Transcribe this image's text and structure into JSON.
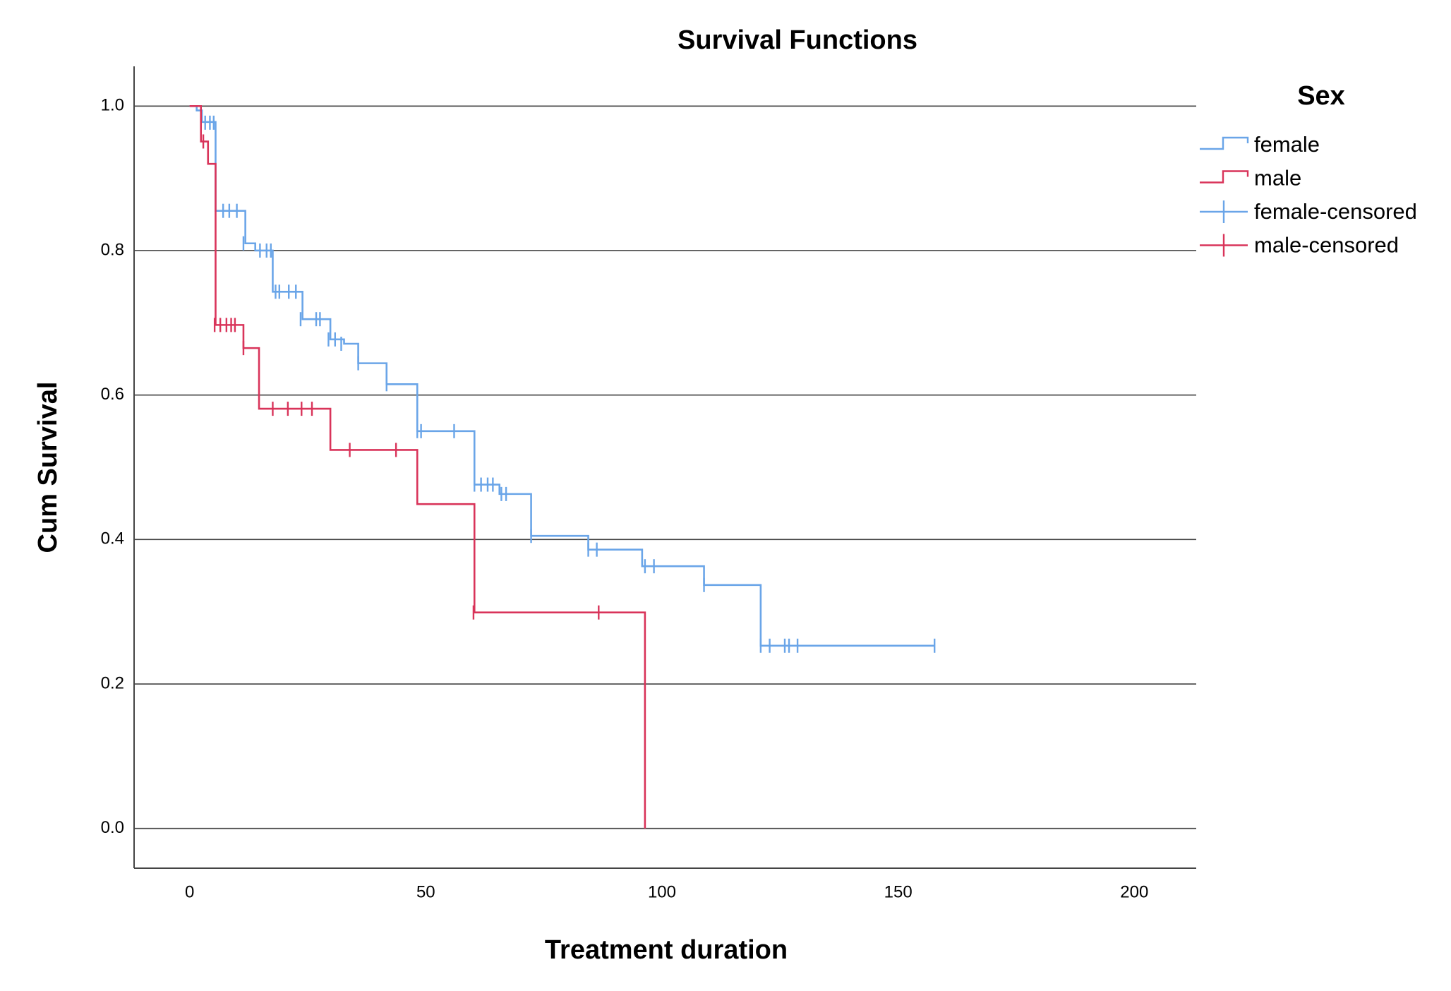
{
  "chart_data": {
    "type": "survival",
    "title": "Survival Functions",
    "x_label": "Treatment duration",
    "y_label": "Cum Survival",
    "legend_title": "Sex",
    "legend_position": "right",
    "grid": "y",
    "xlim": [
      -11.75,
      213.1
    ],
    "ylim": [
      -0.055,
      1.055
    ],
    "xticks": [
      0,
      50,
      100,
      150,
      200
    ],
    "yticks": [
      {
        "value": 0,
        "label": "0.0"
      },
      0.2,
      0.4,
      0.6,
      0.8,
      {
        "value": 1,
        "label": "1.0"
      }
    ],
    "series": [
      {
        "name": "female",
        "color": "#6aa5e8",
        "kind": "step",
        "x": [
          0,
          1.5,
          2.6,
          5.5,
          11.8,
          13.9,
          17.6,
          23.9,
          29.8,
          32.7,
          35.7,
          41.7,
          48.2,
          60.3,
          65.6,
          72.3,
          84.4,
          95.8,
          108.9,
          120.9,
          157.7
        ],
        "values": [
          1.0,
          0.994,
          0.978,
          0.855,
          0.81,
          0.8,
          0.743,
          0.705,
          0.677,
          0.671,
          0.644,
          0.615,
          0.55,
          0.476,
          0.463,
          0.405,
          0.386,
          0.363,
          0.337,
          0.253,
          0.253
        ]
      },
      {
        "name": "male",
        "color": "#d9345a",
        "kind": "step",
        "x": [
          0,
          2.4,
          3.9,
          5.5,
          11.4,
          14.7,
          29.8,
          48.2,
          60.3,
          96.4
        ],
        "values": [
          1.0,
          0.951,
          0.92,
          0.697,
          0.665,
          0.581,
          0.524,
          0.449,
          0.299,
          0.0
        ]
      },
      {
        "name": "female-censored",
        "color": "#6aa5e8",
        "kind": "censored",
        "x": [
          3.3,
          4.3,
          5.1,
          7.1,
          8.4,
          10.0,
          11.4,
          14.9,
          16.3,
          17.2,
          18.2,
          19.0,
          21.0,
          22.5,
          23.5,
          26.8,
          27.6,
          29.4,
          30.8,
          32.1,
          35.7,
          41.7,
          48.2,
          49.0,
          56.0,
          60.3,
          61.7,
          63.1,
          64.2,
          66.0,
          67.0,
          72.3,
          84.4,
          86.2,
          96.4,
          98.3,
          108.9,
          120.9,
          122.8,
          126.0,
          126.9,
          128.7,
          157.7
        ],
        "values": [
          0.977,
          0.977,
          0.977,
          0.855,
          0.855,
          0.855,
          0.81,
          0.8,
          0.8,
          0.8,
          0.743,
          0.743,
          0.743,
          0.743,
          0.705,
          0.705,
          0.705,
          0.677,
          0.677,
          0.671,
          0.644,
          0.615,
          0.55,
          0.55,
          0.55,
          0.476,
          0.476,
          0.476,
          0.476,
          0.463,
          0.463,
          0.405,
          0.386,
          0.386,
          0.363,
          0.363,
          0.337,
          0.253,
          0.253,
          0.253,
          0.253,
          0.253,
          0.253
        ]
      },
      {
        "name": "male-censored",
        "color": "#d9345a",
        "kind": "censored",
        "x": [
          2.9,
          5.3,
          6.5,
          7.8,
          8.8,
          9.6,
          11.4,
          17.6,
          20.8,
          23.7,
          25.9,
          33.9,
          43.7,
          60.1,
          86.6
        ],
        "values": [
          0.951,
          0.697,
          0.697,
          0.697,
          0.697,
          0.697,
          0.665,
          0.581,
          0.581,
          0.581,
          0.581,
          0.524,
          0.524,
          0.299,
          0.299
        ]
      }
    ]
  }
}
